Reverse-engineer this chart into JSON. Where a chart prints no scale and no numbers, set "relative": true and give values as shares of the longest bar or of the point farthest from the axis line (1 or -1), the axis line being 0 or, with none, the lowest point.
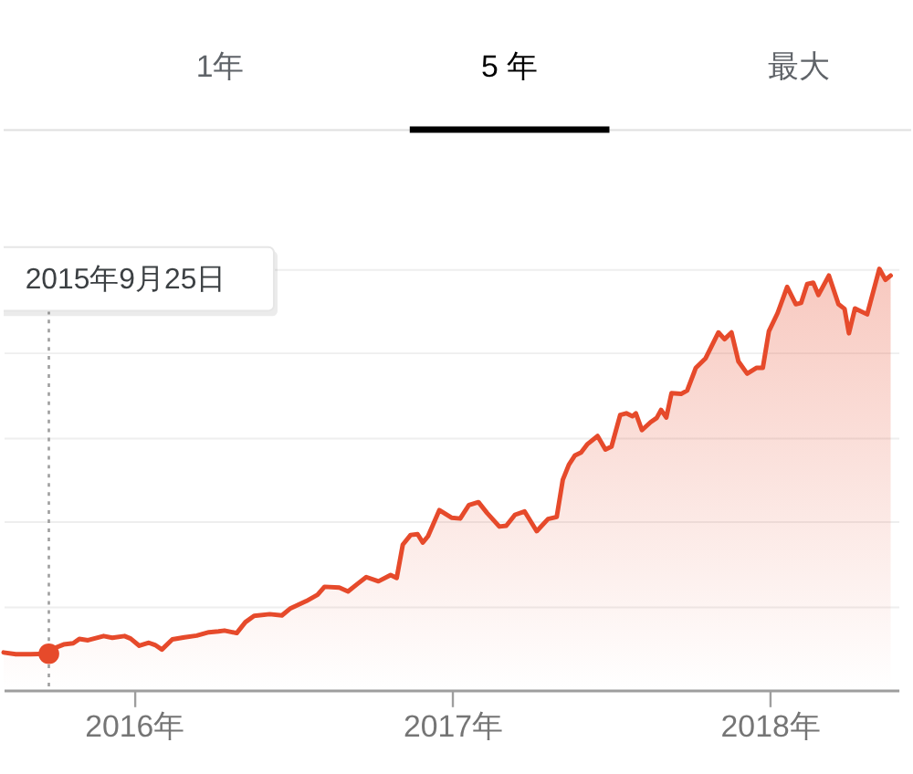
{
  "chart_data": {
    "type": "area",
    "relative": true,
    "annotations": [
      "1年",
      "5 年",
      "最大"
    ],
    "xlim": [
      "2015-08-04",
      "2018-05-29"
    ],
    "xticks": [
      {
        "value": "2016-01-01",
        "label": "2016年"
      },
      {
        "value": "2017-01-01",
        "label": "2017年"
      },
      {
        "value": "2018-01-01",
        "label": "2018年"
      }
    ],
    "grid": "y",
    "tick_labels": "x",
    "ref_lines": [
      {
        "axis": "x",
        "value": "2015-09-25",
        "label": "2015年9月25日",
        "color": "#9e9e9e",
        "line_style": "dotted"
      }
    ],
    "series": [
      {
        "color": "#e64a2b",
        "x": [
          "2015-08-04",
          "2015-08-18",
          "2015-09-04",
          "2015-09-25",
          "2015-10-01",
          "2015-10-12",
          "2015-10-23",
          "2015-10-30",
          "2015-11-09",
          "2015-11-27",
          "2015-12-07",
          "2015-12-21",
          "2015-12-28",
          "2016-01-07",
          "2016-01-18",
          "2016-01-25",
          "2016-02-02",
          "2016-02-14",
          "2016-02-28",
          "2016-03-13",
          "2016-03-27",
          "2016-04-07",
          "2016-04-14",
          "2016-04-28",
          "2016-05-08",
          "2016-05-18",
          "2016-06-05",
          "2016-06-19",
          "2016-06-29",
          "2016-07-17",
          "2016-07-30",
          "2016-08-07",
          "2016-08-24",
          "2016-09-03",
          "2016-09-14",
          "2016-09-24",
          "2016-10-08",
          "2016-10-22",
          "2016-10-29",
          "2016-11-05",
          "2016-11-14",
          "2016-11-22",
          "2016-11-28",
          "2016-12-04",
          "2016-12-17",
          "2016-12-31",
          "2017-01-10",
          "2017-01-20",
          "2017-01-31",
          "2017-02-10",
          "2017-02-24",
          "2017-03-04",
          "2017-03-14",
          "2017-03-25",
          "2017-04-08",
          "2017-04-21",
          "2017-05-01",
          "2017-05-08",
          "2017-05-15",
          "2017-05-22",
          "2017-05-29",
          "2017-06-05",
          "2017-06-17",
          "2017-06-26",
          "2017-07-03",
          "2017-07-13",
          "2017-07-20",
          "2017-07-27",
          "2017-07-31",
          "2017-08-07",
          "2017-08-17",
          "2017-08-24",
          "2017-08-29",
          "2017-09-04",
          "2017-09-10",
          "2017-09-21",
          "2017-09-28",
          "2017-10-08",
          "2017-10-19",
          "2017-11-03",
          "2017-11-10",
          "2017-11-18",
          "2017-11-26",
          "2017-12-06",
          "2017-12-17",
          "2017-12-24",
          "2017-12-31",
          "2018-01-10",
          "2018-01-21",
          "2018-01-31",
          "2018-02-06",
          "2018-02-13",
          "2018-02-20",
          "2018-02-26",
          "2018-03-10",
          "2018-03-21",
          "2018-03-28",
          "2018-04-02",
          "2018-04-09",
          "2018-04-23",
          "2018-05-07",
          "2018-05-14",
          "2018-05-20"
        ],
        "values": [
          0.089,
          0.085,
          0.085,
          0.086,
          0.099,
          0.108,
          0.111,
          0.121,
          0.118,
          0.128,
          0.124,
          0.128,
          0.122,
          0.105,
          0.112,
          0.107,
          0.096,
          0.12,
          0.125,
          0.129,
          0.137,
          0.139,
          0.141,
          0.135,
          0.161,
          0.176,
          0.18,
          0.177,
          0.194,
          0.211,
          0.226,
          0.245,
          0.243,
          0.234,
          0.252,
          0.268,
          0.258,
          0.273,
          0.266,
          0.345,
          0.368,
          0.37,
          0.35,
          0.365,
          0.427,
          0.409,
          0.407,
          0.439,
          0.446,
          0.42,
          0.388,
          0.39,
          0.416,
          0.424,
          0.377,
          0.406,
          0.411,
          0.499,
          0.535,
          0.557,
          0.564,
          0.583,
          0.603,
          0.571,
          0.578,
          0.653,
          0.657,
          0.65,
          0.657,
          0.617,
          0.636,
          0.646,
          0.665,
          0.647,
          0.705,
          0.703,
          0.711,
          0.765,
          0.787,
          0.849,
          0.833,
          0.849,
          0.78,
          0.751,
          0.765,
          0.765,
          0.852,
          0.895,
          0.957,
          0.916,
          0.919,
          0.964,
          0.967,
          0.938,
          0.984,
          0.916,
          0.905,
          0.847,
          0.906,
          0.892,
          1.0,
          0.974,
          0.984
        ]
      },
      {
        "type": "scatter",
        "color": "#e64a2b",
        "marker": "circle",
        "x": [
          "2015-09-25"
        ],
        "values": [
          0.086
        ]
      }
    ]
  }
}
